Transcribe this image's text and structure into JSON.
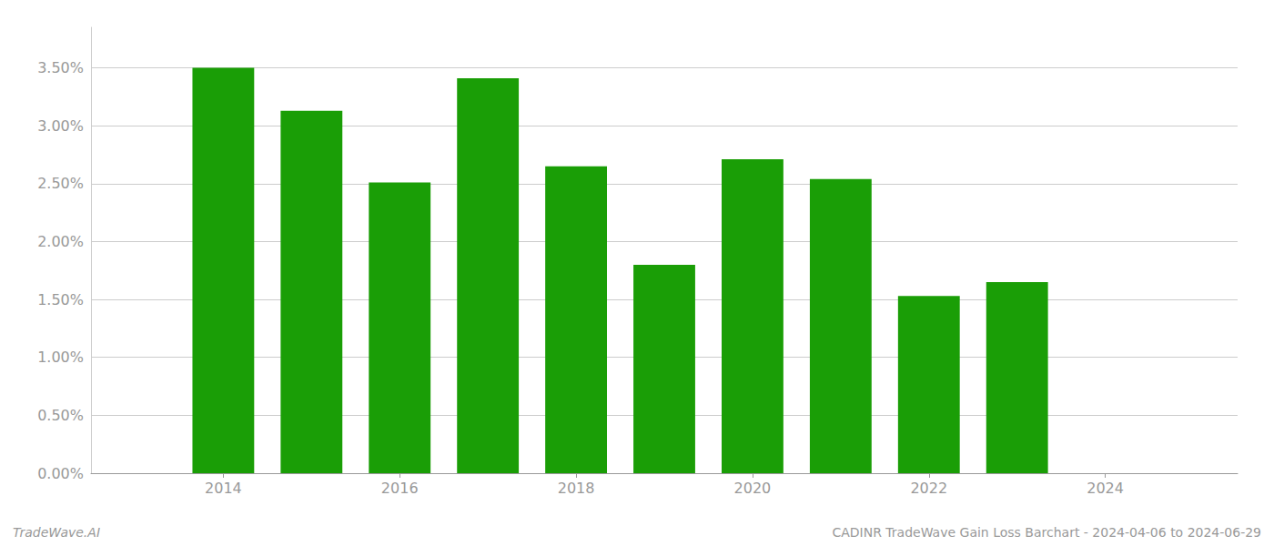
{
  "chart_data": {
    "type": "bar",
    "x": [
      2014,
      2015,
      2016,
      2017,
      2018,
      2019,
      2020,
      2021,
      2022,
      2023
    ],
    "values": [
      0.035,
      0.0313,
      0.0251,
      0.0341,
      0.0265,
      0.018,
      0.0271,
      0.0254,
      0.0153,
      0.0165
    ],
    "color": "#1a9e06",
    "xlim": [
      2012.5,
      2025.5
    ],
    "xticks": [
      2014,
      2016,
      2018,
      2020,
      2022,
      2024
    ],
    "ylim": [
      0,
      0.0385
    ],
    "yticks": [
      {
        "value": 0.0,
        "label": "0.00%"
      },
      {
        "value": 0.005,
        "label": "0.50%"
      },
      {
        "value": 0.01,
        "label": "1.00%"
      },
      {
        "value": 0.015,
        "label": "1.50%"
      },
      {
        "value": 0.02,
        "label": "2.00%"
      },
      {
        "value": 0.025,
        "label": "2.50%"
      },
      {
        "value": 0.03,
        "label": "3.00%"
      },
      {
        "value": 0.035,
        "label": "3.50%"
      }
    ],
    "grid": true,
    "annotations": [
      "TradeWave.AI",
      "CADINR TradeWave Gain Loss Barchart - 2024-04-06 to 2024-06-29"
    ]
  }
}
